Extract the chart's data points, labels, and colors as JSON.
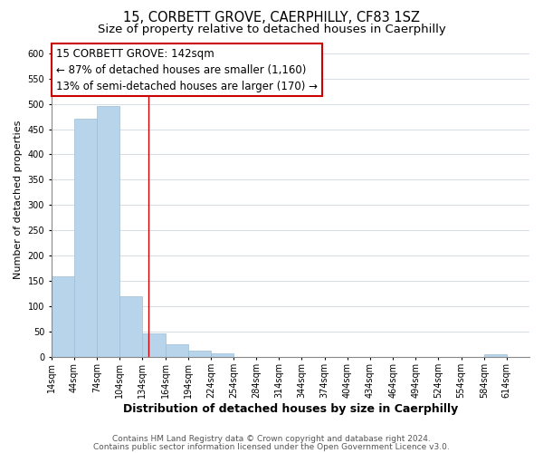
{
  "title": "15, CORBETT GROVE, CAERPHILLY, CF83 1SZ",
  "subtitle": "Size of property relative to detached houses in Caerphilly",
  "xlabel": "Distribution of detached houses by size in Caerphilly",
  "ylabel": "Number of detached properties",
  "bar_edges": [
    14,
    44,
    74,
    104,
    134,
    164,
    194,
    224,
    254,
    284,
    314,
    344,
    374,
    404,
    434,
    464,
    494,
    524,
    554,
    584,
    614
  ],
  "bar_heights": [
    160,
    470,
    495,
    120,
    47,
    25,
    13,
    7,
    0,
    0,
    0,
    0,
    0,
    0,
    0,
    0,
    0,
    0,
    0,
    5
  ],
  "bar_color": "#b8d4ea",
  "bar_edge_color": "#9bbdd6",
  "vline_x": 142,
  "vline_color": "#cc0000",
  "annotation_text_line1": "15 CORBETT GROVE: 142sqm",
  "annotation_text_line2": "← 87% of detached houses are smaller (1,160)",
  "annotation_text_line3": "13% of semi-detached houses are larger (170) →",
  "ylim": [
    0,
    620
  ],
  "yticks": [
    0,
    50,
    100,
    150,
    200,
    250,
    300,
    350,
    400,
    450,
    500,
    550,
    600
  ],
  "xtick_labels": [
    "14sqm",
    "44sqm",
    "74sqm",
    "104sqm",
    "134sqm",
    "164sqm",
    "194sqm",
    "224sqm",
    "254sqm",
    "284sqm",
    "314sqm",
    "344sqm",
    "374sqm",
    "404sqm",
    "434sqm",
    "464sqm",
    "494sqm",
    "524sqm",
    "554sqm",
    "584sqm",
    "614sqm"
  ],
  "footer_line1": "Contains HM Land Registry data © Crown copyright and database right 2024.",
  "footer_line2": "Contains public sector information licensed under the Open Government Licence v3.0.",
  "background_color": "#ffffff",
  "grid_color": "#d0d8e0",
  "title_fontsize": 10.5,
  "subtitle_fontsize": 9.5,
  "xlabel_fontsize": 9,
  "ylabel_fontsize": 8,
  "tick_fontsize": 7,
  "annotation_fontsize": 8.5,
  "footer_fontsize": 6.5
}
